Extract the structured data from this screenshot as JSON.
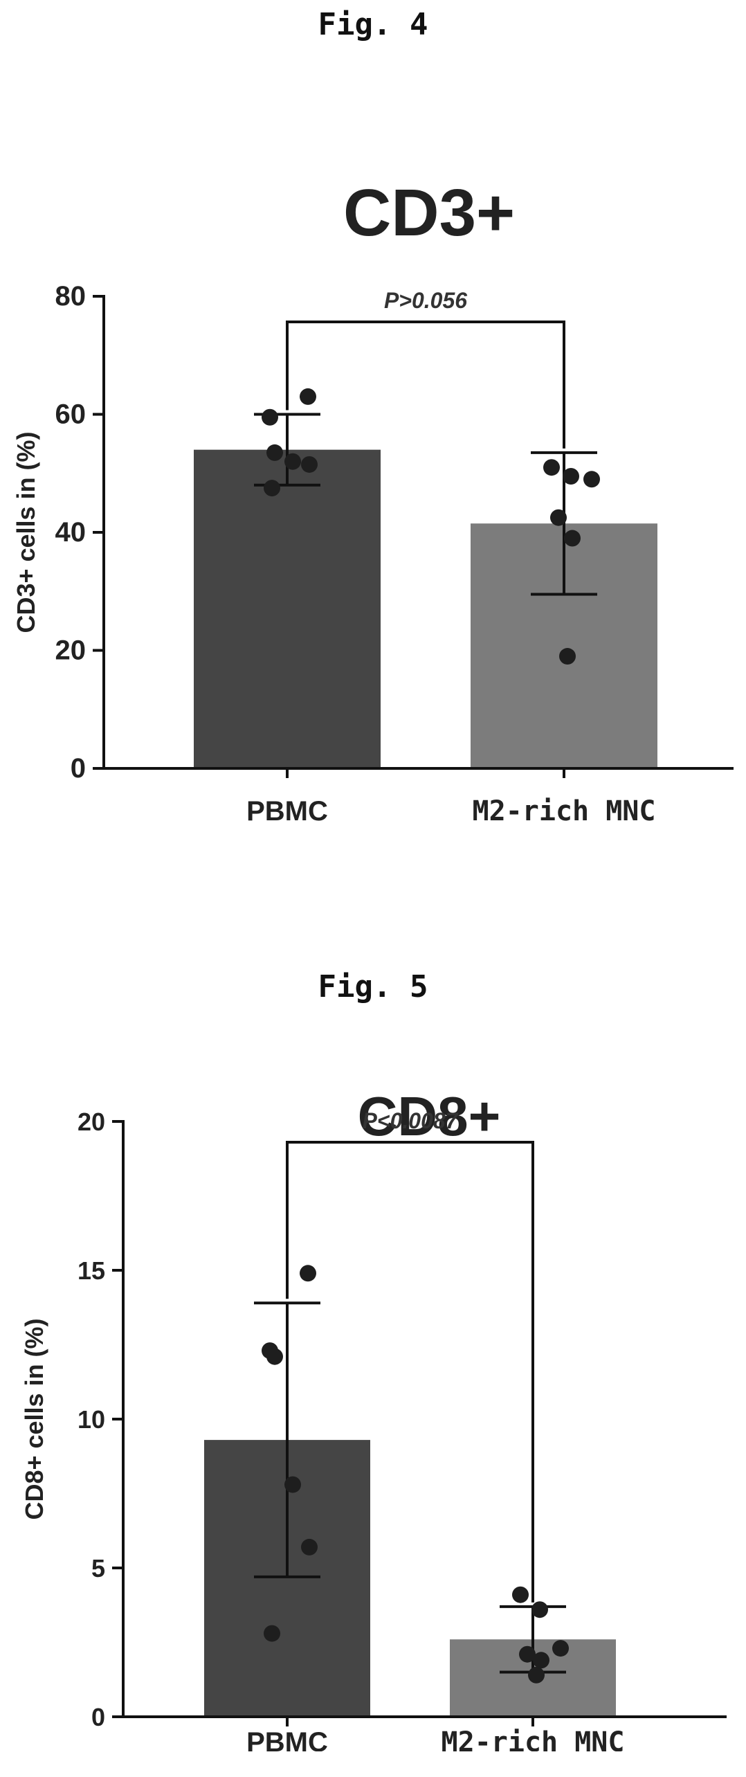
{
  "figures": [
    {
      "label": "Fig. 4"
    },
    {
      "label": "Fig. 5"
    }
  ],
  "chart_data": [
    {
      "type": "bar",
      "title": "CD3+",
      "ylabel": "CD3+ cells in (%)",
      "xlabel": "",
      "categories": [
        "PBMC",
        "M2-rich MNC"
      ],
      "values": [
        54,
        41.5
      ],
      "error": [
        6,
        12
      ],
      "points": [
        [
          63,
          59.5,
          53.5,
          52,
          51.5,
          47.5
        ],
        [
          51,
          49.5,
          49,
          42.5,
          39,
          19
        ]
      ],
      "ylim": [
        0,
        80
      ],
      "yticks": [
        0,
        20,
        40,
        60,
        80
      ],
      "significance": {
        "text": "P>0.056",
        "between": [
          0,
          1
        ]
      },
      "bar_colors": [
        "#454545",
        "#7c7c7c"
      ],
      "grid": false
    },
    {
      "type": "bar",
      "title": "CD8+",
      "ylabel": "CD8+ cells in (%)",
      "xlabel": "",
      "categories": [
        "PBMC",
        "M2-rich MNC"
      ],
      "values": [
        9.3,
        2.6
      ],
      "error": [
        4.6,
        1.1
      ],
      "points": [
        [
          14.9,
          12.3,
          12.1,
          7.8,
          5.7,
          2.8
        ],
        [
          4.1,
          3.6,
          2.3,
          2.1,
          1.9,
          1.4
        ]
      ],
      "ylim": [
        0,
        20
      ],
      "yticks": [
        0,
        5,
        10,
        15,
        20
      ],
      "significance": {
        "text": "P<0.0087",
        "between": [
          0,
          1
        ]
      },
      "bar_colors": [
        "#454545",
        "#7c7c7c"
      ],
      "grid": false
    }
  ]
}
